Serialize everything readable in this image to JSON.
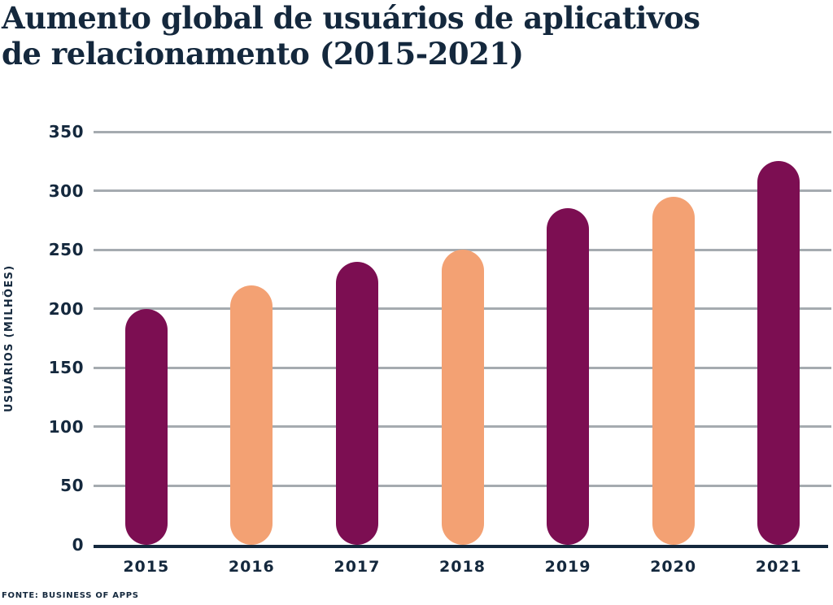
{
  "title": {
    "full": "Aumento global de usuários de aplicativos de relacionamento (2015-2021)",
    "line1": "Aumento global de usuários de aplicativos",
    "line2": "de relacionamento (2015-2021)"
  },
  "source": "FONTE: BUSINESS OF APPS",
  "chart_data": {
    "type": "bar",
    "title": "Aumento global de usuários de aplicativos de relacionamento (2015-2021)",
    "categories": [
      "2015",
      "2016",
      "2017",
      "2018",
      "2019",
      "2020",
      "2021"
    ],
    "values": [
      200,
      220,
      240,
      250,
      285,
      295,
      325
    ],
    "xlabel": "",
    "ylabel": "USUÁRIOS (MILHÕES)",
    "ylim": [
      0,
      350
    ],
    "yticks": [
      0,
      50,
      100,
      150,
      200,
      250,
      300,
      350
    ],
    "grid": true,
    "legend": false,
    "bar_colors": [
      "#7C0E52",
      "#F3A173",
      "#7C0E52",
      "#F3A173",
      "#7C0E52",
      "#F3A173",
      "#7C0E52"
    ],
    "colors": {
      "bar_primary": "#7C0E52",
      "bar_secondary": "#F3A173",
      "text": "#14283D",
      "gridline": "#A5ABB0",
      "axis_line": "#14283D",
      "background": "#FFFFFF"
    }
  }
}
